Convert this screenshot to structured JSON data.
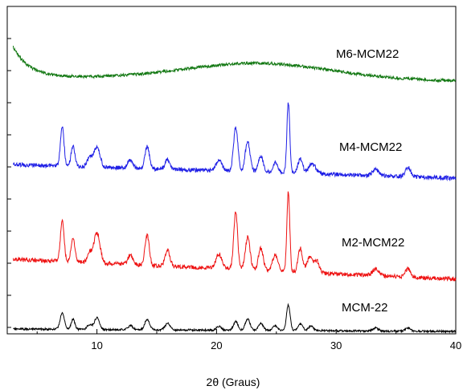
{
  "chart_data": {
    "type": "line",
    "title": "",
    "xlabel": "2θ (Graus)",
    "ylabel": "",
    "xlim": [
      2.5,
      40
    ],
    "x_ticks": [
      10,
      20,
      30,
      40
    ],
    "x_tick_labels": [
      "10",
      "20",
      "30",
      "40"
    ],
    "y_ticks_unlabeled": true,
    "grid": false,
    "legend": "inline labels next to each trace",
    "series": [
      {
        "name": "MCM-22",
        "color": "#000000",
        "baseline_start": 410,
        "baseline_end": 413,
        "noise": 1.2,
        "seed": 11,
        "peaks": [
          [
            7.1,
            20,
            0.18
          ],
          [
            8.0,
            13,
            0.15
          ],
          [
            9.4,
            6,
            0.2
          ],
          [
            10.0,
            15,
            0.2
          ],
          [
            12.8,
            5,
            0.2
          ],
          [
            14.2,
            13,
            0.2
          ],
          [
            15.9,
            8,
            0.2
          ],
          [
            20.2,
            5,
            0.2
          ],
          [
            21.6,
            11,
            0.18
          ],
          [
            22.6,
            14,
            0.2
          ],
          [
            23.7,
            9,
            0.2
          ],
          [
            24.9,
            6,
            0.2
          ],
          [
            26.0,
            32,
            0.15
          ],
          [
            27.0,
            8,
            0.2
          ],
          [
            27.9,
            6,
            0.2
          ],
          [
            33.3,
            4,
            0.2
          ],
          [
            36.0,
            4,
            0.2
          ]
        ]
      },
      {
        "name": "M2-MCM22",
        "color": "#ee1111",
        "baseline_start": 323,
        "baseline_end": 348,
        "noise": 2.5,
        "seed": 29,
        "peaks": [
          [
            7.1,
            53,
            0.15
          ],
          [
            8.0,
            30,
            0.16
          ],
          [
            9.4,
            12,
            0.2
          ],
          [
            10.0,
            38,
            0.25
          ],
          [
            12.8,
            12,
            0.2
          ],
          [
            14.2,
            37,
            0.18
          ],
          [
            15.9,
            20,
            0.2
          ],
          [
            20.2,
            18,
            0.25
          ],
          [
            21.6,
            72,
            0.16
          ],
          [
            22.6,
            40,
            0.2
          ],
          [
            23.7,
            28,
            0.2
          ],
          [
            24.9,
            20,
            0.22
          ],
          [
            26.0,
            100,
            0.12
          ],
          [
            27.0,
            30,
            0.18
          ],
          [
            27.8,
            20,
            0.25
          ],
          [
            28.4,
            14,
            0.2
          ],
          [
            33.3,
            8,
            0.25
          ],
          [
            36.0,
            10,
            0.22
          ]
        ]
      },
      {
        "name": "M4-MCM22",
        "color": "#1f1fe6",
        "baseline_start": 205,
        "baseline_end": 222,
        "noise": 2.5,
        "seed": 47,
        "peaks": [
          [
            7.1,
            48,
            0.15
          ],
          [
            8.0,
            25,
            0.16
          ],
          [
            9.4,
            12,
            0.2
          ],
          [
            10.0,
            25,
            0.25
          ],
          [
            12.8,
            10,
            0.2
          ],
          [
            14.2,
            28,
            0.18
          ],
          [
            15.9,
            12,
            0.2
          ],
          [
            20.2,
            14,
            0.25
          ],
          [
            21.6,
            55,
            0.18
          ],
          [
            22.6,
            38,
            0.2
          ],
          [
            23.7,
            20,
            0.2
          ],
          [
            24.9,
            12,
            0.2
          ],
          [
            26.0,
            88,
            0.12
          ],
          [
            27.0,
            18,
            0.2
          ],
          [
            28.0,
            12,
            0.3
          ],
          [
            33.3,
            8,
            0.25
          ],
          [
            36.0,
            12,
            0.22
          ]
        ]
      },
      {
        "name": "M6-MCM22",
        "color": "#117711",
        "baseline_start": 96,
        "baseline_end": 101,
        "noise": 1.8,
        "seed": 63,
        "peaks": [],
        "start_rise": 38,
        "hump": [
          23.5,
          20,
          6.0
        ]
      }
    ]
  }
}
